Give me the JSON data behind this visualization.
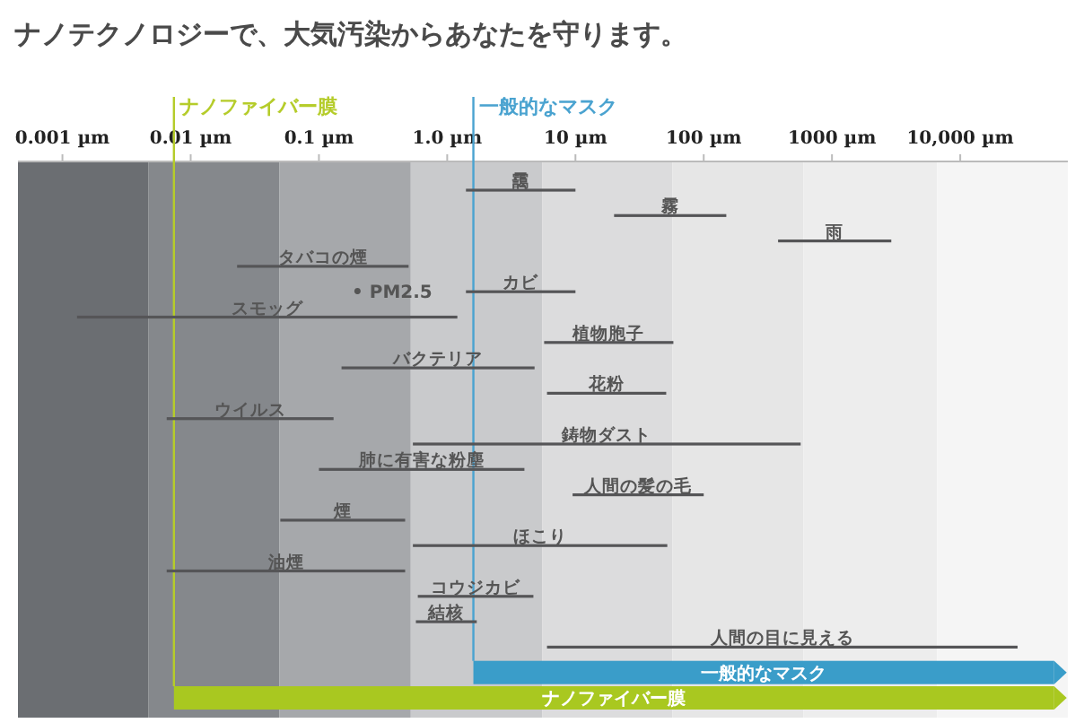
{
  "chart_data": {
    "type": "bar",
    "orientation": "horizontal",
    "log": "x",
    "title": "ナノテクノロジーで、大気汚染からあなたを守ります。",
    "categories": [
      "靄",
      "霧",
      "雨",
      "タバコの煙",
      "カビ",
      "スモッグ",
      "植物胞子",
      "バクテリア",
      "花粉",
      "ウイルス",
      "鋳物ダスト",
      "肺に有害な粉塵",
      "人間の髪の毛",
      "煙",
      "ほこり",
      "油煙",
      "コウジカビ",
      "結核",
      "人間の目に見える",
      "一般的なマスク",
      "ナノファイバー膜"
    ],
    "base": [
      1.4,
      20,
      380,
      0.023,
      1.4,
      0.0013,
      5.7,
      0.15,
      6,
      0.0065,
      0.54,
      0.1,
      9.5,
      0.05,
      0.54,
      0.0065,
      0.59,
      0.57,
      6,
      1.6,
      0.0074
    ],
    "values": [
      8.6,
      130,
      2520,
      0.477,
      8.6,
      1.1987,
      52.3,
      4.65,
      45,
      0.1235,
      569.46,
      3.9,
      90.5,
      0.42,
      51.46,
      0.4635,
      4.11,
      1.13,
      27994,
      53998.4,
      53999.9926
    ],
    "colors": [
      "#555557",
      "#555557",
      "#555557",
      "#555557",
      "#555557",
      "#555557",
      "#555557",
      "#555557",
      "#555557",
      "#555557",
      "#555557",
      "#555557",
      "#555557",
      "#555557",
      "#555557",
      "#555557",
      "#555557",
      "#555557",
      "#555557",
      "#3a9dc9",
      "#a9c820"
    ],
    "xlim": [
      0.00045,
      69000
    ],
    "xticks": [
      {
        "value": 0.001,
        "label": "0.001 µm"
      },
      {
        "value": 0.01,
        "label": "0.01 µm"
      },
      {
        "value": 0.1,
        "label": "0.1 µm"
      },
      {
        "value": 1,
        "label": "1.0 µm"
      },
      {
        "value": 10,
        "label": "10 µm"
      },
      {
        "value": 100,
        "label": "100 µm"
      },
      {
        "value": 1000,
        "label": "1000 µm"
      },
      {
        "value": 10000,
        "label": "10,000 µm"
      }
    ],
    "ref_lines": [
      {
        "axis": "x",
        "value": 0.0074,
        "label": "ナノファイバー膜",
        "color": "#b5cc2a"
      },
      {
        "axis": "x",
        "value": 1.6,
        "label": "一般的なマスク",
        "color": "#4aa3d0"
      }
    ],
    "bands": [
      {
        "axis": "x",
        "from": 0.00045,
        "to": 0.0047,
        "color": "#6b6e72"
      },
      {
        "axis": "x",
        "from": 0.0047,
        "to": 0.049,
        "color": "#85888c"
      },
      {
        "axis": "x",
        "from": 0.049,
        "to": 0.52,
        "color": "#a6a8ab"
      },
      {
        "axis": "x",
        "from": 0.52,
        "to": 5.5,
        "color": "#c9cacc"
      },
      {
        "axis": "x",
        "from": 5.5,
        "to": 57,
        "color": "#dcdcdd"
      },
      {
        "axis": "x",
        "from": 57,
        "to": 600,
        "color": "#e6e6e6"
      },
      {
        "axis": "x",
        "from": 600,
        "to": 6600,
        "color": "#ededed"
      },
      {
        "axis": "x",
        "from": 6600,
        "to": 69000,
        "color": "#f5f5f5"
      }
    ],
    "annotations": [
      "• PM2.5"
    ]
  }
}
